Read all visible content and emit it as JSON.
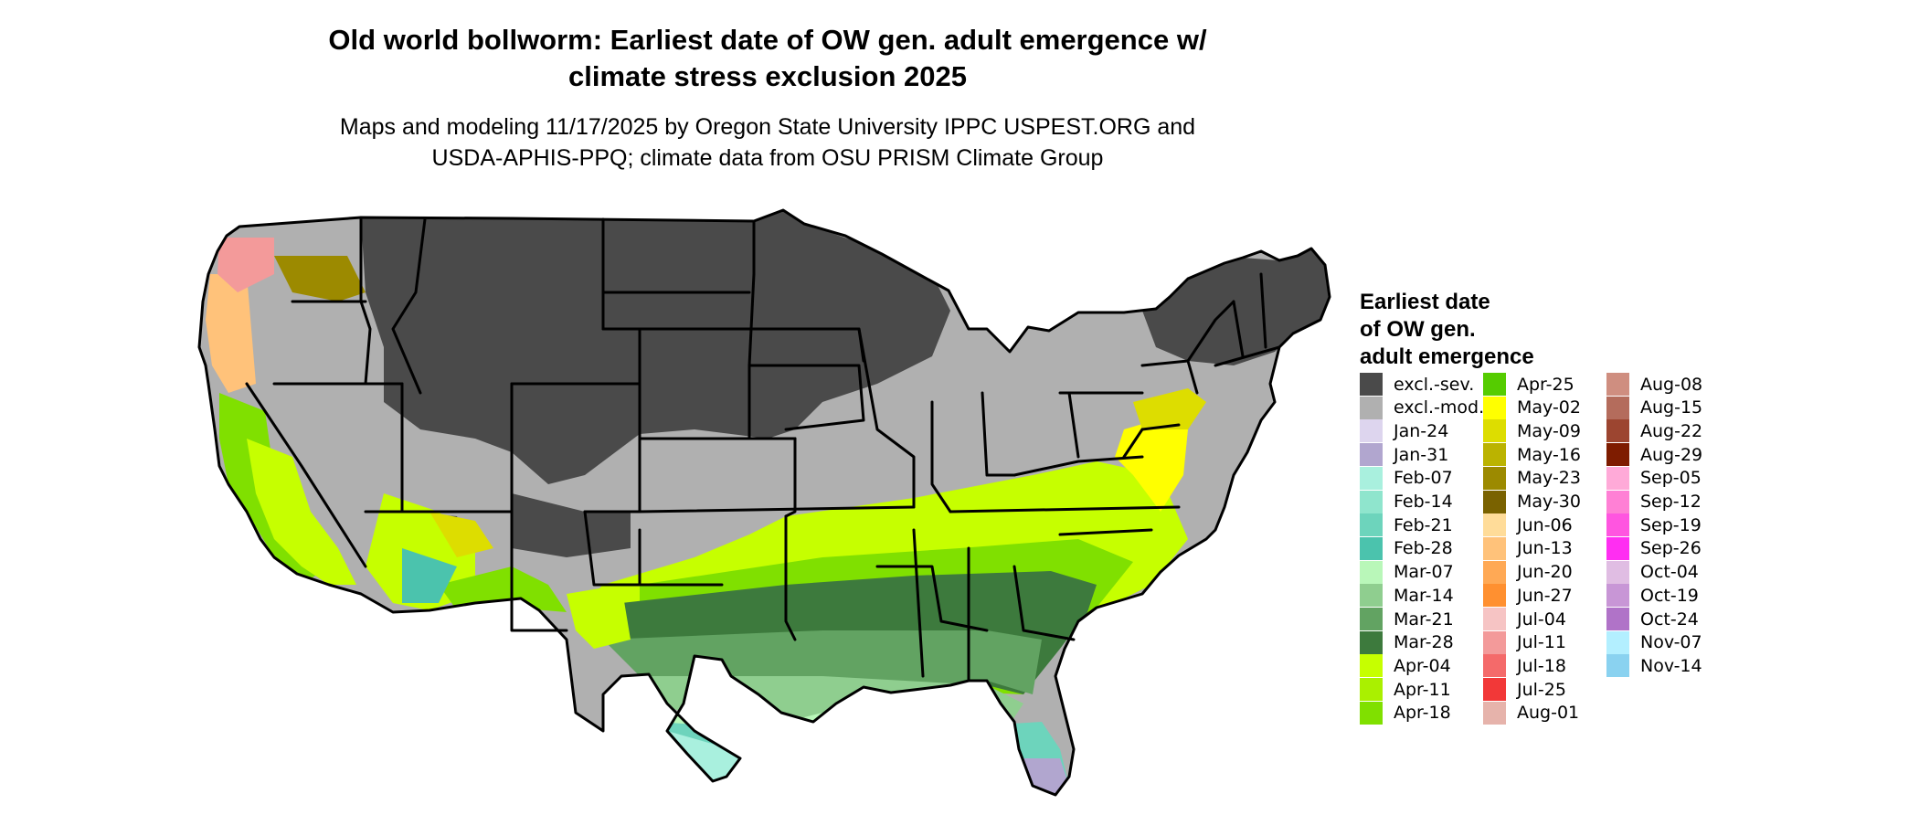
{
  "title": {
    "line1": "Old world bollworm: Earliest date of OW gen. adult emergence w/",
    "line2": "climate stress exclusion 2025"
  },
  "subtitle": {
    "line1": "Maps and modeling 11/17/2025 by Oregon State University IPPC USPEST.ORG and",
    "line2": "USDA-APHIS-PPQ; climate data from OSU PRISM Climate Group"
  },
  "legend": {
    "title": [
      "Earliest date",
      "of OW gen.",
      "adult emergence"
    ],
    "items": [
      {
        "label": "excl.-sev.",
        "color": "#4a4a4a"
      },
      {
        "label": "excl.-mod.",
        "color": "#b0b0b0"
      },
      {
        "label": "Jan-24",
        "color": "#ddd5ee"
      },
      {
        "label": "Jan-31",
        "color": "#b1a6cf"
      },
      {
        "label": "Feb-07",
        "color": "#a9f0de"
      },
      {
        "label": "Feb-14",
        "color": "#8fe5cd"
      },
      {
        "label": "Feb-21",
        "color": "#6dd4bc"
      },
      {
        "label": "Feb-28",
        "color": "#4bc3ad"
      },
      {
        "label": "Mar-07",
        "color": "#b9f7b9"
      },
      {
        "label": "Mar-14",
        "color": "#8fce8f"
      },
      {
        "label": "Mar-21",
        "color": "#62a362"
      },
      {
        "label": "Mar-28",
        "color": "#3d7a3d"
      },
      {
        "label": "Apr-04",
        "color": "#c6ff00"
      },
      {
        "label": "Apr-11",
        "color": "#aaf000"
      },
      {
        "label": "Apr-18",
        "color": "#80e000"
      },
      {
        "label": "Apr-25",
        "color": "#55cc00"
      },
      {
        "label": "May-02",
        "color": "#ffff00"
      },
      {
        "label": "May-09",
        "color": "#dddd00"
      },
      {
        "label": "May-16",
        "color": "#bbb300"
      },
      {
        "label": "May-23",
        "color": "#9c8a00"
      },
      {
        "label": "May-30",
        "color": "#7a6200"
      },
      {
        "label": "Jun-06",
        "color": "#ffdc99"
      },
      {
        "label": "Jun-13",
        "color": "#ffc27a"
      },
      {
        "label": "Jun-20",
        "color": "#ffa955"
      },
      {
        "label": "Jun-27",
        "color": "#ff9030"
      },
      {
        "label": "Jul-04",
        "color": "#f6c4c4"
      },
      {
        "label": "Jul-11",
        "color": "#f39a9a"
      },
      {
        "label": "Jul-18",
        "color": "#f46a6a"
      },
      {
        "label": "Jul-25",
        "color": "#f23838"
      },
      {
        "label": "Aug-01",
        "color": "#e6b3ab"
      },
      {
        "label": "Aug-08",
        "color": "#cf8e80"
      },
      {
        "label": "Aug-15",
        "color": "#b46c5c"
      },
      {
        "label": "Aug-22",
        "color": "#9c4530"
      },
      {
        "label": "Aug-29",
        "color": "#7e1c00"
      },
      {
        "label": "Sep-05",
        "color": "#ffaad8"
      },
      {
        "label": "Sep-12",
        "color": "#ff80d5"
      },
      {
        "label": "Sep-19",
        "color": "#ff55e0"
      },
      {
        "label": "Sep-26",
        "color": "#ff2ef2"
      },
      {
        "label": "Oct-04",
        "color": "#e0bde3"
      },
      {
        "label": "Oct-19",
        "color": "#c896d6"
      },
      {
        "label": "Oct-24",
        "color": "#b073c8"
      },
      {
        "label": "Nov-07",
        "color": "#b3efff"
      },
      {
        "label": "Nov-14",
        "color": "#8ad2f0"
      }
    ]
  }
}
